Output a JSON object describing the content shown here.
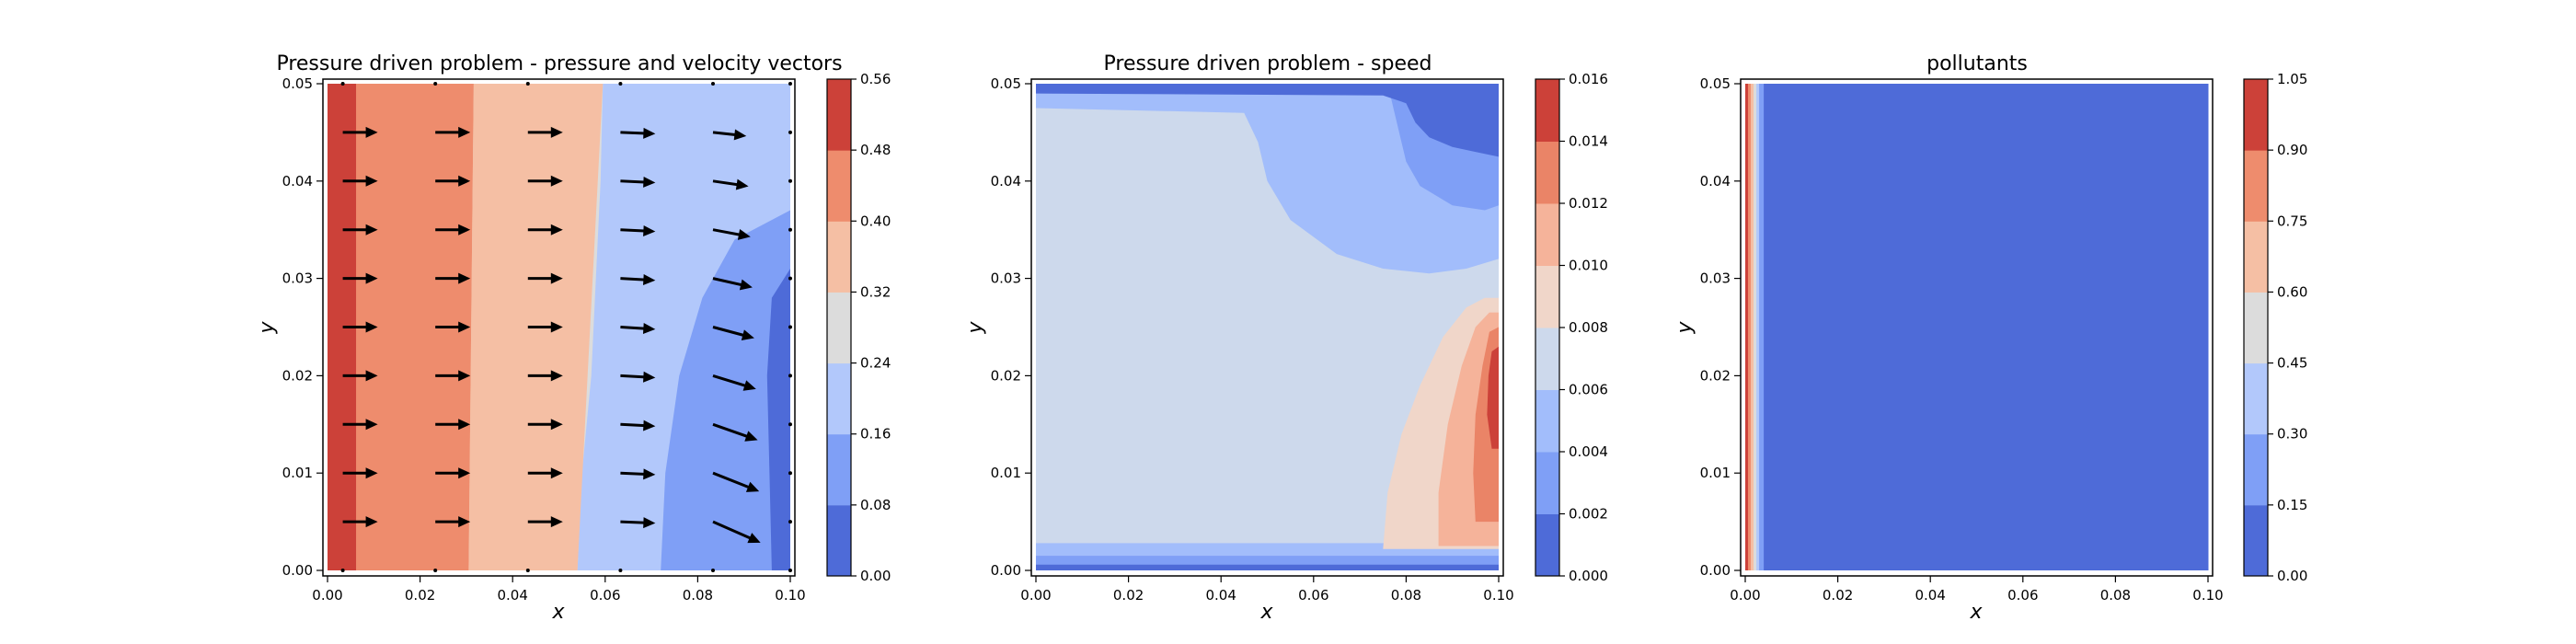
{
  "figure": {
    "background": "#ffffff"
  },
  "palette": {
    "coolwarm_7": [
      "#4e6bd8",
      "#7f9ff6",
      "#b2c8fb",
      "#dcdcdc",
      "#f5bfa4",
      "#ee8c6d",
      "#cc4139"
    ],
    "coolwarm_8": [
      "#4e6bd8",
      "#7f9ff6",
      "#a2bdfb",
      "#cdd9ec",
      "#f0d6c9",
      "#f5b39a",
      "#ea8467",
      "#cc4139"
    ],
    "arrow": "#000000"
  },
  "chart_data": [
    {
      "type": "contour",
      "title": "Pressure driven problem - pressure and velocity vectors",
      "xlabel": "x",
      "ylabel": "y",
      "xlim": [
        0,
        0.1
      ],
      "ylim": [
        0,
        0.05
      ],
      "xticks": [
        "0.00",
        "0.02",
        "0.04",
        "0.06",
        "0.08",
        "0.10"
      ],
      "yticks": [
        "0.00",
        "0.01",
        "0.02",
        "0.03",
        "0.04",
        "0.05"
      ],
      "colorbar": {
        "levels": [
          0.0,
          0.08,
          0.16,
          0.24,
          0.32,
          0.4,
          0.48,
          0.56
        ],
        "tick_labels": [
          "0.00",
          "0.08",
          "0.16",
          "0.24",
          "0.32",
          "0.40",
          "0.48",
          "0.56"
        ]
      },
      "field": "pressure",
      "quiver": {
        "x": [
          0.0033,
          0.0233,
          0.0433,
          0.0633,
          0.0833,
          0.1
        ],
        "y": [
          0.0,
          0.005,
          0.01,
          0.015,
          0.02,
          0.025,
          0.03,
          0.035,
          0.04,
          0.045,
          0.05
        ],
        "note": "velocity vectors, near-horizontal, increasing toward right boundary"
      }
    },
    {
      "type": "contour",
      "title": "Pressure driven problem - speed",
      "xlabel": "x",
      "ylabel": "y",
      "xlim": [
        0,
        0.1
      ],
      "ylim": [
        0,
        0.05
      ],
      "xticks": [
        "0.00",
        "0.02",
        "0.04",
        "0.06",
        "0.08",
        "0.10"
      ],
      "yticks": [
        "0.00",
        "0.01",
        "0.02",
        "0.03",
        "0.04",
        "0.05"
      ],
      "colorbar": {
        "levels": [
          0.0,
          0.002,
          0.004,
          0.006,
          0.008,
          0.01,
          0.012,
          0.014,
          0.016
        ],
        "tick_labels": [
          "0.000",
          "0.002",
          "0.004",
          "0.006",
          "0.008",
          "0.010",
          "0.012",
          "0.014",
          "0.016"
        ]
      },
      "field": "speed"
    },
    {
      "type": "contour",
      "title": "pollutants",
      "xlabel": "x",
      "ylabel": "y",
      "xlim": [
        0,
        0.1
      ],
      "ylim": [
        0,
        0.05
      ],
      "xticks": [
        "0.00",
        "0.02",
        "0.04",
        "0.06",
        "0.08",
        "0.10"
      ],
      "yticks": [
        "0.00",
        "0.01",
        "0.02",
        "0.03",
        "0.04",
        "0.05"
      ],
      "colorbar": {
        "levels": [
          0.0,
          0.15,
          0.3,
          0.45,
          0.6,
          0.75,
          0.9,
          1.05
        ],
        "tick_labels": [
          "0.00",
          "0.15",
          "0.30",
          "0.45",
          "0.60",
          "0.75",
          "0.90",
          "1.05"
        ]
      },
      "field": "pollutant concentration",
      "bands_x_edges": [
        0.0,
        0.0006,
        0.0012,
        0.0018,
        0.0024,
        0.003,
        0.004,
        0.1
      ]
    }
  ]
}
